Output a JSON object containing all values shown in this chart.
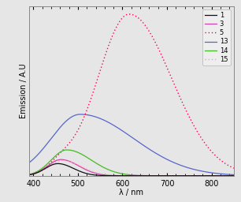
{
  "xlabel": "λ / nm",
  "ylabel": "Emission / A.U",
  "xlim": [
    390,
    850
  ],
  "ylim": [
    0,
    1.05
  ],
  "x_ticks": [
    400,
    500,
    600,
    700,
    800
  ],
  "background_color": "#e6e6e6",
  "series": [
    {
      "label": "1",
      "color": "#111111",
      "linestyle": "-",
      "components": [
        {
          "peak": 455,
          "peak_val": 0.075,
          "sigma_l": 28,
          "sigma_r": 35
        }
      ]
    },
    {
      "label": "3",
      "color": "#cc44aa",
      "linestyle": "-",
      "components": [
        {
          "peak": 462,
          "peak_val": 0.1,
          "sigma_l": 30,
          "sigma_r": 40
        }
      ]
    },
    {
      "label": "5",
      "color": "#ff0055",
      "linestyle": ":",
      "components": [
        {
          "peak": 615,
          "peak_val": 1.0,
          "sigma_l": 70,
          "sigma_r": 95
        },
        {
          "peak": 460,
          "peak_val": 0.055,
          "sigma_l": 25,
          "sigma_r": 30
        }
      ]
    },
    {
      "label": "13",
      "color": "#5566cc",
      "linestyle": "-",
      "components": [
        {
          "peak": 505,
          "peak_val": 0.38,
          "sigma_l": 65,
          "sigma_r": 120
        }
      ]
    },
    {
      "label": "14",
      "color": "#44bb22",
      "linestyle": "-",
      "components": [
        {
          "peak": 475,
          "peak_val": 0.16,
          "sigma_l": 35,
          "sigma_r": 55
        }
      ]
    },
    {
      "label": "15",
      "color": "#ff99bb",
      "linestyle": ":",
      "components": [
        {
          "peak": 465,
          "peak_val": 0.095,
          "sigma_l": 30,
          "sigma_r": 42
        }
      ]
    }
  ]
}
